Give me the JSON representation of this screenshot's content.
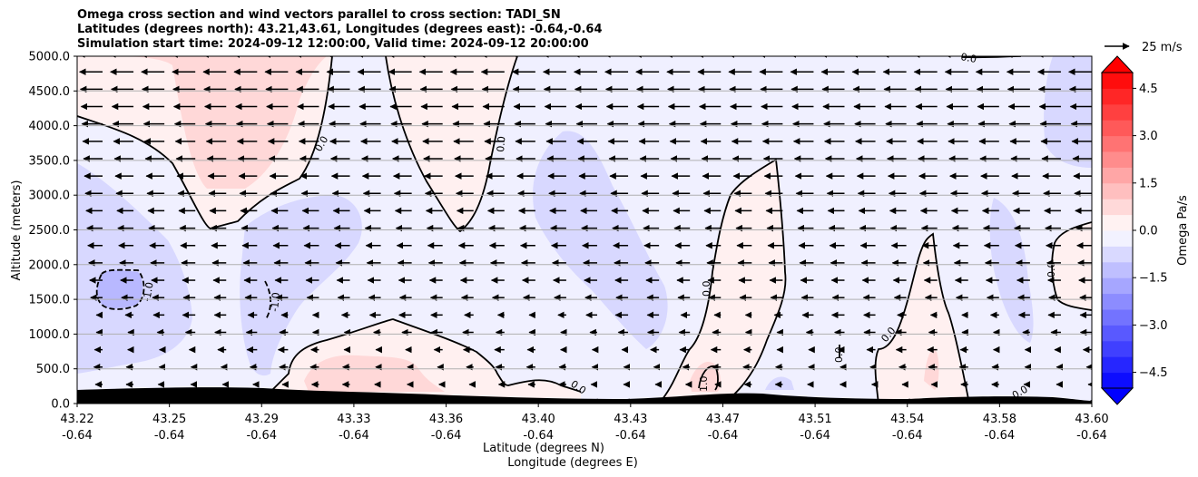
{
  "chart_data": {
    "type": "contourf-cross-section",
    "title": [
      "Omega cross section and wind vectors parallel to cross section: TADI_SN",
      "Latitudes (degrees north): 43.21,43.61, Longitudes (degrees east): -0.64,-0.64",
      "Simulation start time: 2024-09-12 12:00:00, Valid time: 2024-09-12 20:00:00"
    ],
    "xlabel_lat": "Latitude (degrees N)",
    "xlabel_lon": "Longitude (degrees E)",
    "ylabel": "Altitude (meters)",
    "ylim": [
      0,
      5000
    ],
    "yticks": [
      "0.0",
      "500.0",
      "1000.0",
      "1500.0",
      "2000.0",
      "2500.0",
      "3000.0",
      "3500.0",
      "4000.0",
      "4500.0",
      "5000.0"
    ],
    "xticks_lat": [
      "43.22",
      "43.25",
      "43.29",
      "43.33",
      "43.36",
      "43.40",
      "43.43",
      "43.47",
      "43.51",
      "43.54",
      "43.58",
      "43.60"
    ],
    "xticks_lon": [
      "-0.64",
      "-0.64",
      "-0.64",
      "-0.64",
      "-0.64",
      "-0.64",
      "-0.64",
      "-0.64",
      "-0.64",
      "-0.64",
      "-0.64",
      "-0.64"
    ],
    "colorbar": {
      "label": "Omega Pa/s",
      "ticks": [
        "4.5",
        "3.0",
        "1.5",
        "0.0",
        "−1.5",
        "−3.0",
        "−4.5"
      ],
      "range": [
        -5,
        5
      ],
      "extend": "both",
      "positive_color": "#ff0000",
      "negative_color": "#0000ff"
    },
    "quiver_key": "25 m/s",
    "contour_labels": [
      "0.0",
      "0.0",
      "0.0",
      "0.0",
      "0.0",
      "0.0",
      "0.0",
      "0.0",
      "-1.0",
      "-1.0",
      "1.0",
      "0.0",
      "0.0",
      "0.0"
    ],
    "grid": "horizontal"
  }
}
